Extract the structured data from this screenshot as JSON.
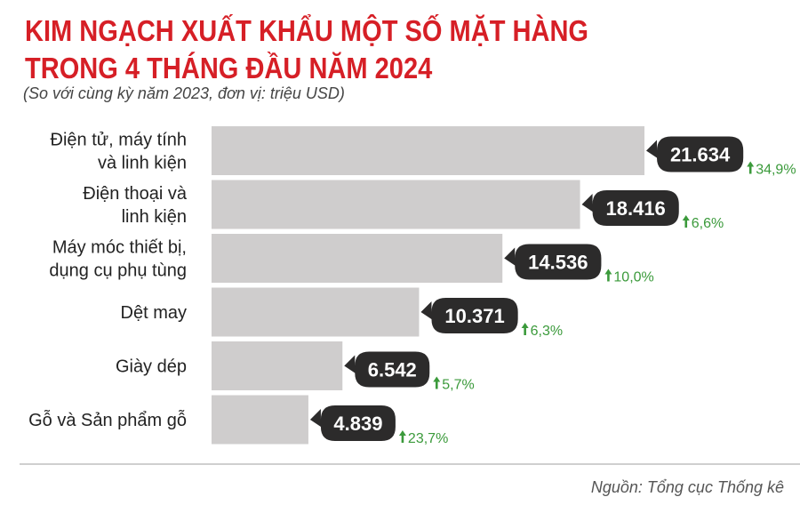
{
  "header": {
    "title_line1": "KIM NGẠCH XUẤT KHẨU MỘT SỐ MẶT HÀNG",
    "title_line2": "TRONG 4 THÁNG ĐẦU NĂM 2024",
    "subtitle": "(So với cùng kỳ năm 2023, đơn vị: triệu USD)"
  },
  "footer": {
    "source": "Nguồn: Tổng cục Thống kê"
  },
  "colors": {
    "title": "#d61f26",
    "bar": "#cfcdcd",
    "badge": "#2c2b2b",
    "badge_text": "#ffffff",
    "growth": "#3b9a3b",
    "category_text": "#222222"
  },
  "chart_data": {
    "type": "bar",
    "orientation": "horizontal",
    "categories": [
      [
        "Điện tử, máy tính",
        "và linh kiện"
      ],
      [
        "Điện thoại và",
        "linh kiện"
      ],
      [
        "Máy móc thiết bị,",
        "dụng cụ phụ tùng"
      ],
      [
        "Dệt may"
      ],
      [
        "Giày dép"
      ],
      [
        "Gỗ và Sản phẩm gỗ"
      ]
    ],
    "values": [
      21634,
      18416,
      14536,
      10371,
      6542,
      4839
    ],
    "value_labels": [
      "21.634",
      "18.416",
      "14.536",
      "10.371",
      "6.542",
      "4.839"
    ],
    "growth_labels": [
      "34,9%",
      "6,6%",
      "10,0%",
      "6,3%",
      "5,7%",
      "23,7%"
    ],
    "growth_direction": [
      "up",
      "up",
      "up",
      "up",
      "up",
      "up"
    ],
    "xlim": [
      0,
      21634
    ],
    "grid": false,
    "legend": "none"
  }
}
